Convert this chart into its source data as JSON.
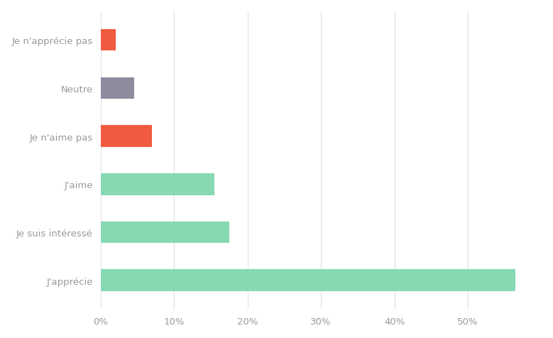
{
  "categories": [
    "J'apprécie",
    "Je suis intéressé",
    "J'aime",
    "Je n'aime pas",
    "Neutre",
    "Je n'apprécie pas"
  ],
  "values": [
    56.5,
    17.5,
    15.5,
    7.0,
    4.5,
    2.0
  ],
  "colors": [
    "#86d9b0",
    "#86d9b0",
    "#86d9b0",
    "#f05a40",
    "#8c8c9e",
    "#f05a40"
  ],
  "xlim": [
    0,
    60
  ],
  "xticks": [
    0,
    10,
    20,
    30,
    40,
    50
  ],
  "xtick_labels": [
    "0%",
    "10%",
    "20%",
    "30%",
    "40%",
    "50%"
  ],
  "background_color": "#ffffff",
  "grid_color": "#e0e0e0",
  "label_color": "#999999",
  "bar_height": 0.45
}
